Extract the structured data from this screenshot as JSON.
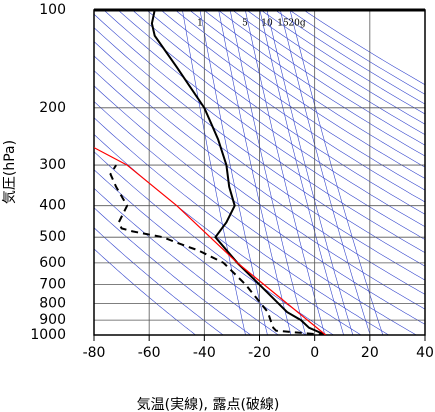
{
  "chart_data": {
    "type": "line",
    "xlabel": "気温(実線), 露点(破線)",
    "ylabel": "気圧(hPa)",
    "xlim": [
      -80,
      40
    ],
    "xticks": [
      -80,
      -60,
      -40,
      -20,
      0,
      20,
      40
    ],
    "ylim": [
      1000,
      100
    ],
    "yticks": [
      100,
      200,
      300,
      400,
      500,
      600,
      700,
      800,
      900,
      1000
    ],
    "ylog": true,
    "grid": true,
    "mixing_ratio_labels": [
      "1",
      "5",
      "10",
      "15",
      "20g"
    ],
    "series": [
      {
        "color": "#000000",
        "style": "solid",
        "x": [
          4,
          -2,
          -5,
          -10,
          -20,
          -28,
          -36,
          -32,
          -29,
          -31,
          -32,
          -35,
          -40,
          -50,
          -58,
          -59,
          -58
        ],
        "y": [
          1000,
          950,
          900,
          850,
          700,
          600,
          500,
          450,
          400,
          350,
          300,
          250,
          200,
          150,
          120,
          110,
          100
        ]
      },
      {
        "color": "#000000",
        "style": "dashed",
        "x": [
          4,
          -14,
          -15,
          -16,
          -17,
          -25,
          -33,
          -42,
          -50,
          -55,
          -66,
          -70,
          -71,
          -68,
          -72,
          -74,
          -72
        ],
        "y": [
          1000,
          970,
          950,
          900,
          850,
          700,
          600,
          550,
          520,
          500,
          480,
          470,
          450,
          400,
          350,
          320,
          300
        ]
      },
      {
        "color": "#ff0000",
        "style": "solid",
        "x": [
          4,
          -28,
          -50,
          -68,
          -80
        ],
        "y": [
          1000,
          600,
          400,
          300,
          265
        ]
      }
    ]
  }
}
